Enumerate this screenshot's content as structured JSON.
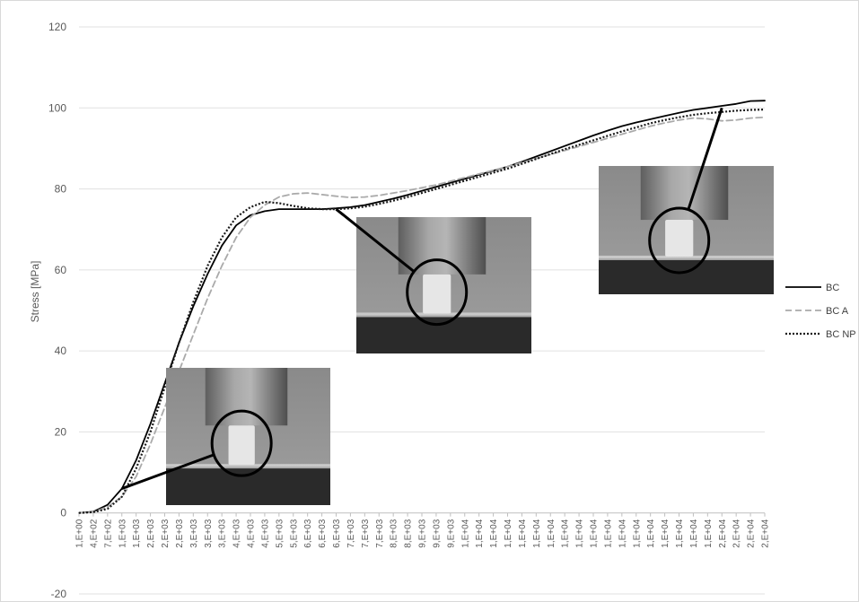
{
  "chart_data": {
    "type": "line",
    "title": "",
    "xlabel": "",
    "ylabel": "Stress [MPa]",
    "ylim": [
      -20,
      120
    ],
    "yticks": [
      -20,
      0,
      20,
      40,
      60,
      80,
      100,
      120
    ],
    "grid": true,
    "legend_position": "right",
    "x_tick_labels": [
      "1,E+00",
      "4,E+02",
      "7,E+02",
      "1,E+03",
      "1,E+03",
      "2,E+03",
      "2,E+03",
      "2,E+03",
      "3,E+03",
      "3,E+03",
      "3,E+03",
      "4,E+03",
      "4,E+03",
      "4,E+03",
      "5,E+03",
      "5,E+03",
      "6,E+03",
      "6,E+03",
      "6,E+03",
      "7,E+03",
      "7,E+03",
      "7,E+03",
      "8,E+03",
      "8,E+03",
      "9,E+03",
      "9,E+03",
      "9,E+03",
      "1,E+04",
      "1,E+04",
      "1,E+04",
      "1,E+04",
      "1,E+04",
      "1,E+04",
      "1,E+04",
      "1,E+04",
      "1,E+04",
      "1,E+04",
      "1,E+04",
      "1,E+04",
      "1,E+04",
      "1,E+04",
      "1,E+04",
      "1,E+04",
      "1,E+04",
      "1,E+04",
      "2,E+04",
      "2,E+04",
      "2,E+04",
      "2,E+04"
    ],
    "series": [
      {
        "name": "BC",
        "style": "solid",
        "color": "#000000",
        "values": [
          0,
          0.3,
          2,
          6,
          13,
          22,
          32,
          42,
          51,
          59,
          66,
          71,
          73.5,
          74.5,
          75,
          75,
          75,
          75,
          75.2,
          75.5,
          76,
          76.8,
          77.6,
          78.5,
          79.5,
          80.5,
          81.5,
          82.5,
          83.5,
          84.5,
          85.5,
          86.7,
          88,
          89.3,
          90.6,
          91.9,
          93.2,
          94.4,
          95.5,
          96.4,
          97.2,
          98,
          98.8,
          99.5,
          100,
          100.5,
          101,
          101.7,
          101.8
        ]
      },
      {
        "name": "BC A",
        "style": "dashed",
        "color": "#aaaaaa",
        "values": [
          0,
          0.2,
          1.5,
          4,
          9,
          17,
          26,
          35,
          44,
          53,
          61,
          68,
          73,
          76,
          78,
          78.8,
          79,
          78.6,
          78.2,
          77.9,
          78,
          78.4,
          79,
          79.6,
          80.3,
          81,
          81.9,
          82.8,
          83.7,
          84.6,
          85.5,
          86.5,
          87.5,
          88.5,
          89.5,
          90.5,
          91.5,
          92.5,
          93.5,
          94.5,
          95.5,
          96.3,
          97,
          97.5,
          97.3,
          96.8,
          97,
          97.5,
          97.7
        ]
      },
      {
        "name": "BC NP",
        "style": "dotted",
        "color": "#1a1a1a",
        "values": [
          0,
          0.2,
          1,
          4,
          11,
          20,
          31,
          42,
          52,
          61,
          68,
          73,
          75.5,
          76.8,
          76.5,
          75.8,
          75.2,
          75,
          75,
          75.2,
          75.6,
          76.3,
          77.1,
          78,
          79,
          80,
          81,
          82,
          83,
          84,
          85,
          86.2,
          87.4,
          88.6,
          89.8,
          90.9,
          92,
          93.1,
          94.2,
          95.2,
          96.2,
          97,
          97.7,
          98.3,
          98.7,
          99,
          99.3,
          99.5,
          99.6
        ]
      }
    ],
    "inset_photos": [
      {
        "name": "inset-photo-early",
        "pointer_index": 3,
        "pointer_value": 6
      },
      {
        "name": "inset-photo-middle",
        "pointer_index": 18,
        "pointer_value": 75
      },
      {
        "name": "inset-photo-late",
        "pointer_index": 45,
        "pointer_value": 100
      }
    ]
  }
}
